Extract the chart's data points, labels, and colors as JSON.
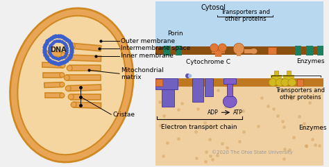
{
  "bg_color": "#f0f0f0",
  "mito_outer_fill": "#e8a555",
  "mito_matrix_fill": "#f5d5a0",
  "mito_stroke": "#d08820",
  "dna_color": "#3a5fcc",
  "cytosol_color": "#b8d8f0",
  "intermembrane_color": "#e8b870",
  "matrix_color": "#f0d0a0",
  "outer_mem_color": "#8B5010",
  "inner_mem_color": "#c07820",
  "porin_color": "#1a8060",
  "transporter_color": "#e07838",
  "enzyme_color": "#d4b820",
  "complex_color": "#7060c0",
  "atp_color": "#8060c8",
  "copyright": "©2020 The Ohio State University",
  "labels": {
    "cytosol": "Cytosol",
    "porin": "Porin",
    "transporters_top": "Transporters and\nother proteins",
    "cytochrome": "Cytochrome C",
    "electron": "Electron transport chain",
    "enzymes_top": "Enzymes",
    "transporters_bottom": "Transporters and\nother proteins",
    "enzymes_bottom": "Enzymes",
    "outer_membrane": "Outer membrane",
    "intermembrane": "Intermembrane space",
    "inner_membrane": "Inner membrane",
    "matrix": "Mitochondrial\nmatrix",
    "cristae": "Cristae",
    "dna": "DNA"
  }
}
